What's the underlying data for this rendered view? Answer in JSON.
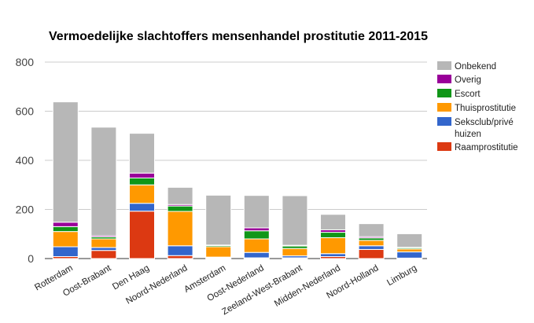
{
  "chart_data": {
    "type": "bar",
    "stacked": true,
    "title": "Vermoedelijke slachtoffers mensenhandel prostitutie 2011-2015",
    "xlabel": "",
    "ylabel": "",
    "ylim": [
      0,
      800
    ],
    "yticks": [
      0,
      200,
      400,
      600,
      800
    ],
    "grid": true,
    "legend_position": "right",
    "categories": [
      "Rotterdam",
      "Oost-Brabant",
      "Den Haag",
      "Noord-Nederland",
      "Amsterdam",
      "Oost-Nederland",
      "Zeeland-West-Brabant",
      "Midden-Nederland",
      "Noord-Holland",
      "Limburg"
    ],
    "series": [
      {
        "name": "Raamprostitutie",
        "color": "#dc3912",
        "values": [
          8,
          33,
          193,
          12,
          3,
          3,
          3,
          8,
          37,
          2
        ]
      },
      {
        "name": "Seksclub/privé huizen",
        "color": "#3366cc",
        "values": [
          40,
          12,
          32,
          40,
          3,
          22,
          8,
          12,
          15,
          25
        ]
      },
      {
        "name": "Thuisprostitutie",
        "color": "#ff9900",
        "values": [
          62,
          35,
          75,
          140,
          42,
          55,
          30,
          65,
          22,
          12
        ]
      },
      {
        "name": "Escort",
        "color": "#109618",
        "values": [
          20,
          8,
          28,
          22,
          5,
          33,
          10,
          22,
          10,
          5
        ]
      },
      {
        "name": "Overig",
        "color": "#990099",
        "values": [
          18,
          5,
          20,
          6,
          2,
          12,
          3,
          10,
          5,
          2
        ]
      },
      {
        "name": "Onbekend",
        "color": "#b7b7b7",
        "values": [
          490,
          442,
          162,
          70,
          203,
          132,
          202,
          63,
          53,
          55
        ]
      }
    ]
  }
}
